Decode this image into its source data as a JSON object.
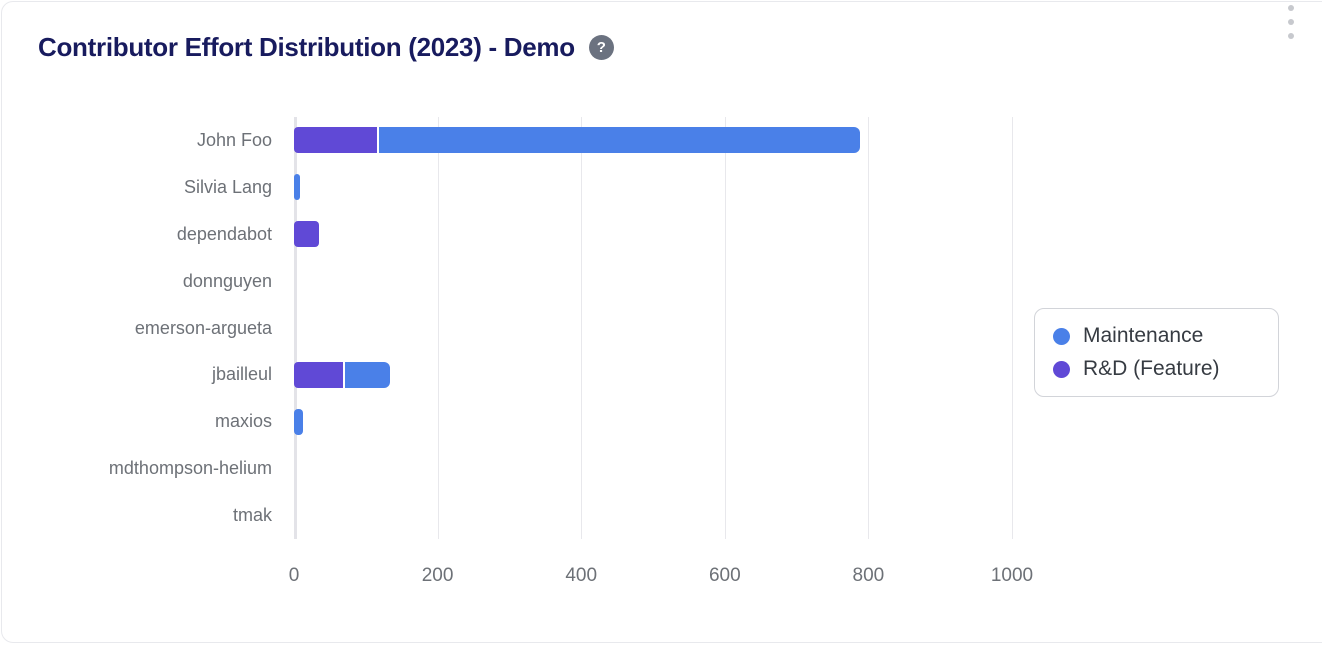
{
  "header": {
    "title": "Contributor Effort Distribution (2023) - Demo",
    "help_glyph": "?"
  },
  "chart_data": {
    "type": "bar",
    "orientation": "horizontal",
    "stacked": true,
    "title": "Contributor Effort Distribution (2023) - Demo",
    "categories": [
      "John Foo",
      "Silvia Lang",
      "dependabot",
      "donnguyen",
      "emerson-argueta",
      "jbailleul",
      "maxios",
      "mdthompson-helium",
      "tmak"
    ],
    "series": [
      {
        "name": "Maintenance",
        "color": "#4A80E8",
        "values": [
          670,
          8,
          0,
          0,
          0,
          63,
          12,
          0,
          0
        ]
      },
      {
        "name": "R&D (Feature)",
        "color": "#6049D6",
        "values": [
          115,
          0,
          35,
          0,
          0,
          68,
          0,
          0,
          0
        ]
      }
    ],
    "stack_order": [
      "R&D (Feature)",
      "Maintenance"
    ],
    "xticks": [
      0,
      200,
      400,
      600,
      800,
      1000
    ],
    "xlim": [
      0,
      1000
    ],
    "xlabel": "",
    "ylabel": "",
    "grid": "vertical",
    "legend_position": "right"
  }
}
